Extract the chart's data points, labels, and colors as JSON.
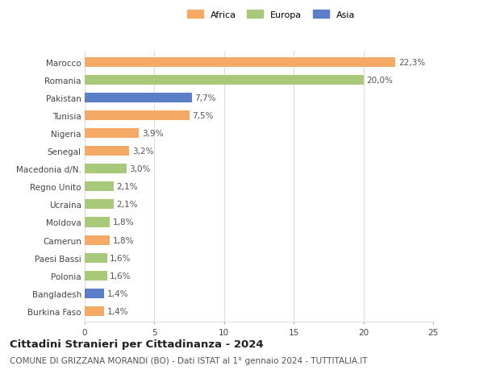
{
  "categories": [
    "Marocco",
    "Romania",
    "Pakistan",
    "Tunisia",
    "Nigeria",
    "Senegal",
    "Macedonia d/N.",
    "Regno Unito",
    "Ucraina",
    "Moldova",
    "Camerun",
    "Paesi Bassi",
    "Polonia",
    "Bangladesh",
    "Burkina Faso"
  ],
  "values": [
    22.3,
    20.0,
    7.7,
    7.5,
    3.9,
    3.2,
    3.0,
    2.1,
    2.1,
    1.8,
    1.8,
    1.6,
    1.6,
    1.4,
    1.4
  ],
  "labels": [
    "22,3%",
    "20,0%",
    "7,7%",
    "7,5%",
    "3,9%",
    "3,2%",
    "3,0%",
    "2,1%",
    "2,1%",
    "1,8%",
    "1,8%",
    "1,6%",
    "1,6%",
    "1,4%",
    "1,4%"
  ],
  "colors": [
    "#F4A965",
    "#A8C87A",
    "#5B7EC9",
    "#F4A965",
    "#F4A965",
    "#F4A965",
    "#A8C87A",
    "#A8C87A",
    "#A8C87A",
    "#A8C87A",
    "#F4A965",
    "#A8C87A",
    "#A8C87A",
    "#5B7EC9",
    "#F4A965"
  ],
  "continent_labels": [
    "Africa",
    "Europa",
    "Asia"
  ],
  "continent_colors": [
    "#F4A965",
    "#A8C87A",
    "#5B7EC9"
  ],
  "title_bold": "Cittadini Stranieri per Cittadinanza - 2024",
  "subtitle": "COMUNE DI GRIZZANA MORANDI (BO) - Dati ISTAT al 1° gennaio 2024 - TUTTITALIA.IT",
  "xlim": [
    0,
    25
  ],
  "xticks": [
    0,
    5,
    10,
    15,
    20,
    25
  ],
  "background_color": "#ffffff",
  "grid_color": "#dddddd",
  "bar_height": 0.55,
  "label_fontsize": 7.5,
  "tick_fontsize": 7.5,
  "title_fontsize": 9.5,
  "subtitle_fontsize": 7.5
}
